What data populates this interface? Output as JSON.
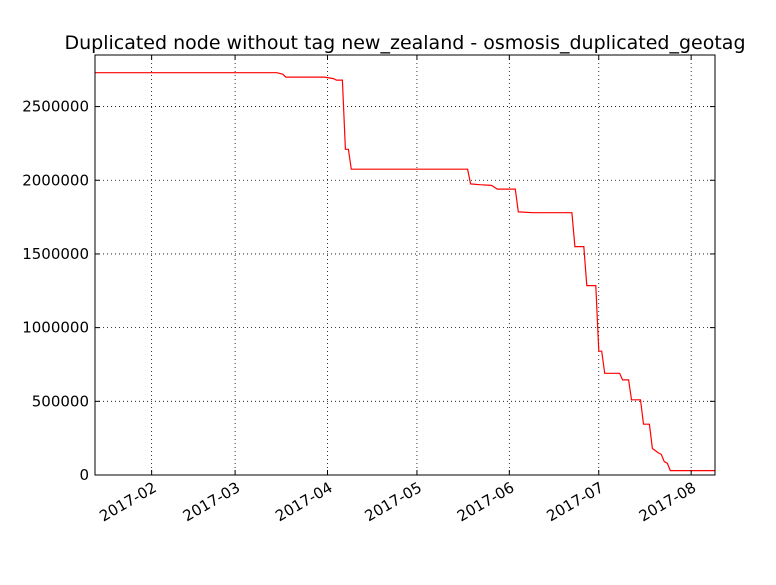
{
  "chart_data": {
    "type": "line",
    "title": "Duplicated node without tag new_zealand - osmosis_duplicated_geotag",
    "xlabel": "",
    "ylabel": "",
    "grid": true,
    "line_color": "#ff0000",
    "x_range": [
      "2017-01-13",
      "2017-08-09"
    ],
    "ylim": [
      0,
      2850000
    ],
    "y_ticks": [
      0,
      500000,
      1000000,
      1500000,
      2000000,
      2500000
    ],
    "y_tick_labels": [
      "0",
      "500000",
      "1000000",
      "1500000",
      "2000000",
      "2500000"
    ],
    "x_ticks": [
      "2017-02-01",
      "2017-03-01",
      "2017-04-01",
      "2017-05-01",
      "2017-06-01",
      "2017-07-01",
      "2017-08-01"
    ],
    "x_tick_labels": [
      "2017-02",
      "2017-03",
      "2017-04",
      "2017-05",
      "2017-06",
      "2017-07",
      "2017-08"
    ],
    "series": [
      {
        "x": [
          "2017-01-13",
          "2017-03-15",
          "2017-03-17",
          "2017-03-18",
          "2017-03-31",
          "2017-04-03",
          "2017-04-04",
          "2017-04-06",
          "2017-04-07",
          "2017-04-08",
          "2017-04-09",
          "2017-05-18",
          "2017-05-19",
          "2017-05-22",
          "2017-05-26",
          "2017-05-28",
          "2017-06-03",
          "2017-06-04",
          "2017-06-09",
          "2017-06-22",
          "2017-06-23",
          "2017-06-26",
          "2017-06-27",
          "2017-06-30",
          "2017-07-01",
          "2017-07-02",
          "2017-07-03",
          "2017-07-08",
          "2017-07-09",
          "2017-07-11",
          "2017-07-12",
          "2017-07-15",
          "2017-07-16",
          "2017-07-18",
          "2017-07-19",
          "2017-07-21",
          "2017-07-22",
          "2017-07-23",
          "2017-07-24",
          "2017-07-25",
          "2017-08-09"
        ],
        "y": [
          2730000,
          2730000,
          2720000,
          2700000,
          2700000,
          2690000,
          2680000,
          2680000,
          2210000,
          2210000,
          2075000,
          2075000,
          1975000,
          1970000,
          1965000,
          1940000,
          1940000,
          1785000,
          1780000,
          1780000,
          1550000,
          1550000,
          1285000,
          1285000,
          840000,
          840000,
          690000,
          690000,
          645000,
          645000,
          510000,
          510000,
          345000,
          345000,
          180000,
          150000,
          140000,
          90000,
          80000,
          30000,
          30000
        ]
      }
    ]
  }
}
